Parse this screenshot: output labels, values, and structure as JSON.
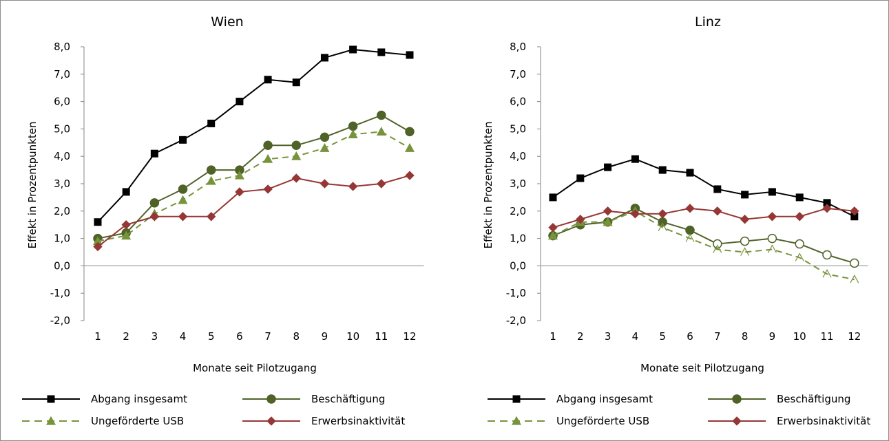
{
  "chart_data": [
    {
      "type": "line",
      "title": "Wien",
      "xlabel": "Monate seit Pilotzugang",
      "ylabel": "Effekt in Prozentpunkten",
      "ylim": [
        -2,
        8
      ],
      "yticks": [
        "8,0",
        "7,0",
        "6,0",
        "5,0",
        "4,0",
        "3,0",
        "2,0",
        "1,0",
        "0,0",
        "-1,0",
        "-2,0"
      ],
      "categories": [
        "1",
        "2",
        "3",
        "4",
        "5",
        "6",
        "7",
        "8",
        "9",
        "10",
        "11",
        "12"
      ],
      "grid": false,
      "legend_position": "bottom",
      "series": [
        {
          "name": "Abgang insgesamt",
          "values": [
            1.6,
            2.7,
            4.1,
            4.6,
            5.2,
            6.0,
            6.8,
            6.7,
            7.6,
            7.9,
            7.8,
            7.7
          ],
          "color": "#000000",
          "marker": "square",
          "dash": "solid"
        },
        {
          "name": "Beschäftigung",
          "values": [
            1.0,
            1.2,
            2.3,
            2.8,
            3.5,
            3.5,
            4.4,
            4.4,
            4.7,
            5.1,
            5.5,
            4.9
          ],
          "color": "#4f6228",
          "marker": "circle",
          "dash": "solid"
        },
        {
          "name": "Ungeförderte USB",
          "values": [
            0.9,
            1.1,
            1.9,
            2.4,
            3.1,
            3.3,
            3.9,
            4.0,
            4.3,
            4.8,
            4.9,
            4.3
          ],
          "color": "#77933c",
          "marker": "triangle",
          "dash": "dashed"
        },
        {
          "name": "Erwerbsinaktivität",
          "values": [
            0.7,
            1.5,
            1.8,
            1.8,
            1.8,
            2.7,
            2.8,
            3.2,
            3.0,
            2.9,
            3.0,
            3.3
          ],
          "color": "#953735",
          "marker": "diamond",
          "dash": "solid"
        }
      ]
    },
    {
      "type": "line",
      "title": "Linz",
      "xlabel": "Monate seit Pilotzugang",
      "ylabel": "Effekt in Prozentpunkten",
      "ylim": [
        -2,
        8
      ],
      "yticks": [
        "8,0",
        "7,0",
        "6,0",
        "5,0",
        "4,0",
        "3,0",
        "2,0",
        "1,0",
        "0,0",
        "-1,0",
        "-2,0"
      ],
      "categories": [
        "1",
        "2",
        "3",
        "4",
        "5",
        "6",
        "7",
        "8",
        "9",
        "10",
        "11",
        "12"
      ],
      "grid": false,
      "legend_position": "bottom",
      "series": [
        {
          "name": "Abgang insgesamt",
          "values": [
            2.5,
            3.2,
            3.6,
            3.9,
            3.5,
            3.4,
            2.8,
            2.6,
            2.7,
            2.5,
            2.3,
            1.8
          ],
          "color": "#000000",
          "marker": "square",
          "dash": "solid"
        },
        {
          "name": "Beschäftigung",
          "values": [
            1.1,
            1.5,
            1.6,
            2.1,
            1.6,
            1.3,
            0.8,
            0.9,
            1.0,
            0.8,
            0.4,
            0.1
          ],
          "color": "#4f6228",
          "marker": "circle",
          "dash": "solid",
          "hollow_from_index": 6
        },
        {
          "name": "Ungeförderte USB",
          "values": [
            1.1,
            1.6,
            1.6,
            2.0,
            1.4,
            1.0,
            0.6,
            0.5,
            0.6,
            0.3,
            -0.3,
            -0.5
          ],
          "color": "#77933c",
          "marker": "triangle",
          "dash": "dashed",
          "hollow_from_index": 4
        },
        {
          "name": "Erwerbsinaktivität",
          "values": [
            1.4,
            1.7,
            2.0,
            1.9,
            1.9,
            2.1,
            2.0,
            1.7,
            1.8,
            1.8,
            2.1,
            2.0
          ],
          "color": "#953735",
          "marker": "diamond",
          "dash": "solid"
        }
      ]
    }
  ]
}
